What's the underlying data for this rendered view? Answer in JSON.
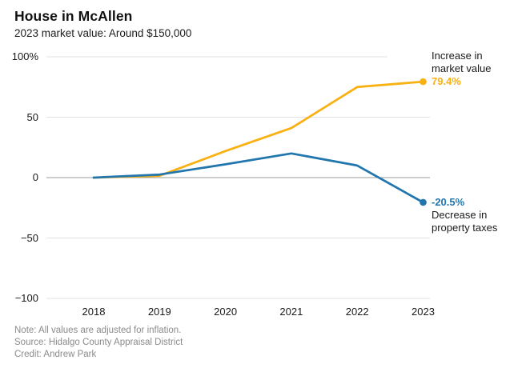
{
  "header": {
    "title": "House in McAllen",
    "subtitle": "2023 market value: Around $150,000"
  },
  "chart_data": {
    "type": "line",
    "x": [
      "2018",
      "2019",
      "2020",
      "2021",
      "2022",
      "2023"
    ],
    "series": [
      {
        "name": "Increase in market value",
        "color": "#F9B011",
        "values": [
          0,
          1.5,
          22,
          41,
          75,
          79.4
        ],
        "end_label": "79.4%"
      },
      {
        "name": "Decrease in property taxes",
        "color": "#2176AE",
        "values": [
          0,
          2.5,
          11,
          20,
          10,
          -20.5
        ],
        "end_label": "-20.5%"
      }
    ],
    "ylim": [
      -100,
      100
    ],
    "ytick_values": [
      100,
      50,
      0,
      -50,
      -100
    ],
    "ytick_labels": [
      "100%",
      "50",
      "0",
      "−50",
      "−100"
    ],
    "grid": true,
    "zero_line": true,
    "legend_position": "right-annotations",
    "title": "House in McAllen",
    "subtitle": "2023 market value: Around $150,000"
  },
  "annotations": {
    "increase": {
      "line1": "Increase in",
      "line2": "market value",
      "value": "79.4%",
      "color": "#F9B011"
    },
    "decrease": {
      "value": "-20.5%",
      "line1": "Decrease in",
      "line2": "property taxes",
      "color": "#2176AE"
    }
  },
  "footer": {
    "note": "Note: All values are adjusted for inflation.",
    "source": "Source: Hidalgo County Appraisal District",
    "credit": "Credit: Andrew Park"
  }
}
